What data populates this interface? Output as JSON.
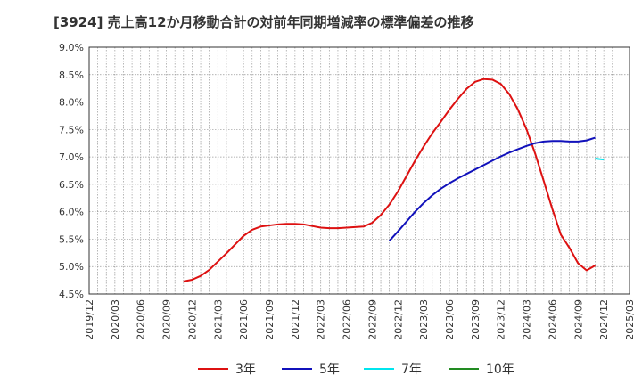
{
  "chart_data": {
    "type": "line",
    "title": "[3924]  売上高12か月移動合計の対前年同期増減率の標準偏差の推移",
    "xlabel": "",
    "ylabel": "",
    "ylim": [
      4.5,
      9.0
    ],
    "y_ticks": [
      "9.0%",
      "8.5%",
      "8.0%",
      "7.5%",
      "7.0%",
      "6.5%",
      "6.0%",
      "5.5%",
      "5.0%",
      "4.5%"
    ],
    "y_tick_values": [
      9.0,
      8.5,
      8.0,
      7.5,
      7.0,
      6.5,
      6.0,
      5.5,
      5.0,
      4.5
    ],
    "x_ticks": [
      "2019/12",
      "2020/03",
      "2020/06",
      "2020/09",
      "2020/12",
      "2021/03",
      "2021/06",
      "2021/09",
      "2021/12",
      "2022/03",
      "2022/06",
      "2022/09",
      "2022/12",
      "2023/03",
      "2023/06",
      "2023/09",
      "2023/12",
      "2024/03",
      "2024/06",
      "2024/09",
      "2024/12",
      "2025/03"
    ],
    "x_start": "2019/12",
    "grid": true,
    "legend_position": "bottom",
    "series": [
      {
        "name": "3年",
        "color": "#dd1111",
        "start": "2020/11",
        "values": [
          4.73,
          4.76,
          4.83,
          4.94,
          5.09,
          5.24,
          5.4,
          5.56,
          5.67,
          5.73,
          5.75,
          5.77,
          5.78,
          5.78,
          5.77,
          5.74,
          5.71,
          5.7,
          5.7,
          5.71,
          5.72,
          5.73,
          5.8,
          5.94,
          6.13,
          6.37,
          6.65,
          6.93,
          7.19,
          7.43,
          7.64,
          7.86,
          8.06,
          8.24,
          8.37,
          8.42,
          8.41,
          8.33,
          8.14,
          7.86,
          7.5,
          7.06,
          6.56,
          6.05,
          5.58,
          5.34,
          5.06,
          4.93,
          5.02
        ]
      },
      {
        "name": "5年",
        "color": "#1111bb",
        "start": "2022/11",
        "values": [
          5.47,
          5.64,
          5.82,
          6.0,
          6.16,
          6.3,
          6.42,
          6.52,
          6.61,
          6.69,
          6.77,
          6.85,
          6.93,
          7.01,
          7.08,
          7.14,
          7.2,
          7.25,
          7.28,
          7.29,
          7.29,
          7.28,
          7.28,
          7.3,
          7.35
        ]
      },
      {
        "name": "7年",
        "color": "#00e5ee",
        "start": "2024/11",
        "values": [
          6.97,
          6.95
        ]
      },
      {
        "name": "10年",
        "color": "#228b22",
        "start": "2024/12",
        "values": []
      }
    ]
  }
}
